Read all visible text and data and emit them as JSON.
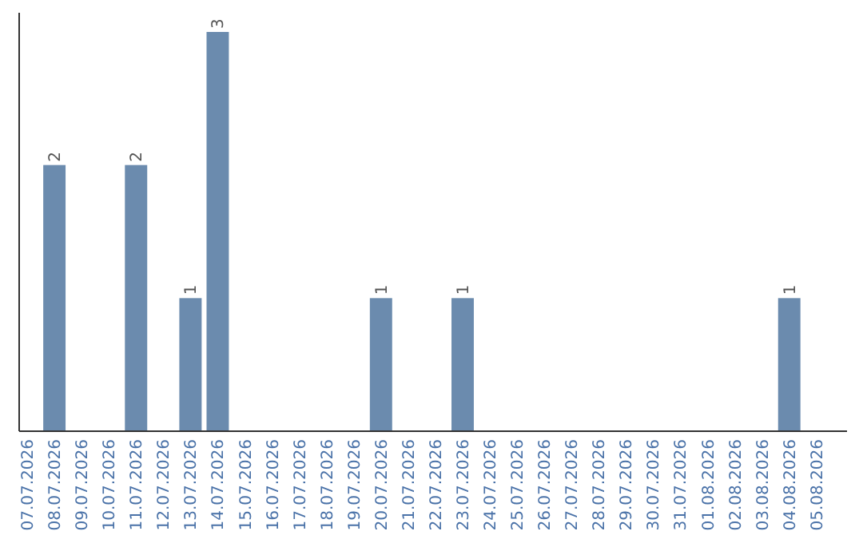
{
  "chart_data": {
    "type": "bar",
    "categories": [
      "07.07.2026",
      "08.07.2026",
      "09.07.2026",
      "10.07.2026",
      "11.07.2026",
      "12.07.2026",
      "13.07.2026",
      "14.07.2026",
      "15.07.2026",
      "16.07.2026",
      "17.07.2026",
      "18.07.2026",
      "19.07.2026",
      "20.07.2026",
      "21.07.2026",
      "22.07.2026",
      "23.07.2026",
      "24.07.2026",
      "25.07.2026",
      "26.07.2026",
      "27.07.2026",
      "28.07.2026",
      "29.07.2026",
      "30.07.2026",
      "31.07.2026",
      "01.08.2026",
      "02.08.2026",
      "03.08.2026",
      "04.08.2026",
      "05.08.2026"
    ],
    "values": [
      0,
      2,
      0,
      0,
      2,
      0,
      1,
      3,
      0,
      0,
      0,
      0,
      0,
      1,
      0,
      0,
      1,
      0,
      0,
      0,
      0,
      0,
      0,
      0,
      0,
      0,
      0,
      0,
      1,
      0
    ],
    "value_labels": [
      null,
      "2",
      null,
      null,
      "2",
      null,
      "1",
      "3",
      null,
      null,
      null,
      null,
      null,
      "1",
      null,
      null,
      "1",
      null,
      null,
      null,
      null,
      null,
      null,
      null,
      null,
      null,
      null,
      null,
      "1",
      null
    ],
    "color": "#6b8bae",
    "tick_labels": "x"
  }
}
